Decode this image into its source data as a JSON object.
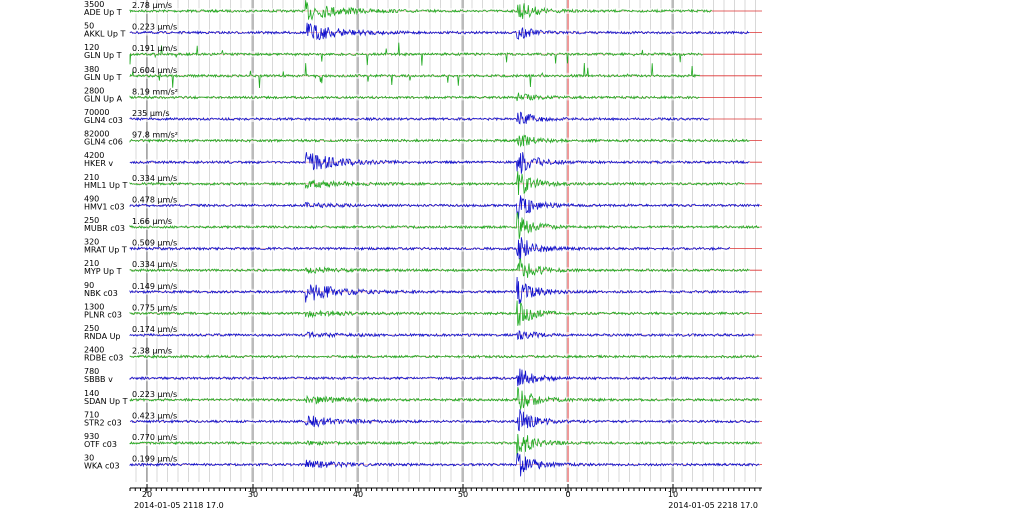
{
  "channels": [
    {
      "count": "3500",
      "name": "ADE Up T",
      "scale": "2.78 µm/s",
      "color": "#22aa22"
    },
    {
      "count": "50",
      "name": "AKKL Up T",
      "scale": "0.223 µm/s",
      "color": "#1111cc"
    },
    {
      "count": "120",
      "name": "GLN Up T",
      "scale": "0.191 µm/s",
      "color": "#22aa22"
    },
    {
      "count": "380",
      "name": "GLN Up T",
      "scale": "0.604 µm/s",
      "color": "#22aa22"
    },
    {
      "count": "2800",
      "name": "GLN Up A",
      "scale": "8.19 mm/s²",
      "color": "#22aa22"
    },
    {
      "count": "70000",
      "name": "GLN4 c03",
      "scale": "235 µm/s",
      "color": "#1111cc"
    },
    {
      "count": "82000",
      "name": "GLN4 c06",
      "scale": "97.8 mm/s²",
      "color": "#22aa22"
    },
    {
      "count": "4200",
      "name": "HKER v",
      "color": "#1111cc"
    },
    {
      "count": "210",
      "name": "HML1 Up T",
      "scale": "0.334 µm/s",
      "color": "#22aa22"
    },
    {
      "count": "490",
      "name": "HMV1 c03",
      "scale": "0.478 µm/s",
      "color": "#1111cc"
    },
    {
      "count": "250",
      "name": "MUBR c03",
      "scale": "1.66 µm/s",
      "color": "#22aa22"
    },
    {
      "count": "320",
      "name": "MRAT Up T",
      "scale": "0.509 µm/s",
      "color": "#1111cc"
    },
    {
      "count": "210",
      "name": "MYP Up T",
      "scale": "0.334 µm/s",
      "color": "#22aa22"
    },
    {
      "count": "90",
      "name": "NBK c03",
      "scale": "0.149 µm/s",
      "color": "#1111cc"
    },
    {
      "count": "1300",
      "name": "PLNR c03",
      "scale": "0.775 µm/s",
      "color": "#22aa22"
    },
    {
      "count": "250",
      "name": "RNDA Up",
      "scale": "0.174 µm/s",
      "color": "#1111cc"
    },
    {
      "count": "2400",
      "name": "RDBE c03",
      "scale": "2.38 µm/s",
      "color": "#22aa22"
    },
    {
      "count": "780",
      "name": "SBBB v",
      "color": "#1111cc"
    },
    {
      "count": "140",
      "name": "SDAN Up T",
      "scale": "0.223 µm/s",
      "color": "#22aa22"
    },
    {
      "count": "710",
      "name": "STR2 c03",
      "scale": "0.423 µm/s",
      "color": "#1111cc"
    },
    {
      "count": "930",
      "name": "OTF c03",
      "scale": "0.770 µm/s",
      "color": "#22aa22"
    },
    {
      "count": "30",
      "name": "WKA c03",
      "scale": "0.199 µm/s",
      "color": "#1111cc"
    }
  ],
  "time_axis": {
    "ticks": [
      "20",
      "30",
      "40",
      "50",
      "0",
      "10"
    ],
    "start": "2014-01-05 2118 17.0",
    "end": "2014-01-05 2218 17.0"
  }
}
